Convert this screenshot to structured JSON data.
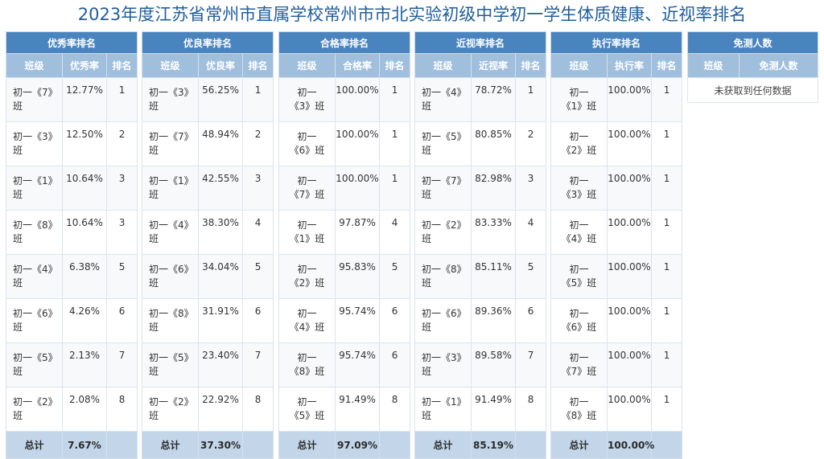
{
  "title": "2023年度江苏省常州市直属学校常州市市北实验初级中学初一学生体质健康、近视率排名",
  "col_class": "班级",
  "col_rank": "排名",
  "total_label": "总计",
  "tables": [
    {
      "heading": "优秀率排名",
      "value_col": "优秀率",
      "rows": [
        {
          "cls_a": "初一《7》",
          "cls_b": "班",
          "val": "12.77%",
          "rank": "1"
        },
        {
          "cls_a": "初一《3》",
          "cls_b": "班",
          "val": "12.50%",
          "rank": "2"
        },
        {
          "cls_a": "初一《1》",
          "cls_b": "班",
          "val": "10.64%",
          "rank": "3"
        },
        {
          "cls_a": "初一《8》",
          "cls_b": "班",
          "val": "10.64%",
          "rank": "3"
        },
        {
          "cls_a": "初一《4》",
          "cls_b": "班",
          "val": "6.38%",
          "rank": "5"
        },
        {
          "cls_a": "初一《6》",
          "cls_b": "班",
          "val": "4.26%",
          "rank": "6"
        },
        {
          "cls_a": "初一《5》",
          "cls_b": "班",
          "val": "2.13%",
          "rank": "7"
        },
        {
          "cls_a": "初一《2》",
          "cls_b": "班",
          "val": "2.08%",
          "rank": "8"
        }
      ],
      "total": "7.67%"
    },
    {
      "heading": "优良率排名",
      "value_col": "优良率",
      "rows": [
        {
          "cls_a": "初一《3》",
          "cls_b": "班",
          "val": "56.25%",
          "rank": "1"
        },
        {
          "cls_a": "初一《7》",
          "cls_b": "班",
          "val": "48.94%",
          "rank": "2"
        },
        {
          "cls_a": "初一《1》",
          "cls_b": "班",
          "val": "42.55%",
          "rank": "3"
        },
        {
          "cls_a": "初一《4》",
          "cls_b": "班",
          "val": "38.30%",
          "rank": "4"
        },
        {
          "cls_a": "初一《6》",
          "cls_b": "班",
          "val": "34.04%",
          "rank": "5"
        },
        {
          "cls_a": "初一《8》",
          "cls_b": "班",
          "val": "31.91%",
          "rank": "6"
        },
        {
          "cls_a": "初一《5》",
          "cls_b": "班",
          "val": "23.40%",
          "rank": "7"
        },
        {
          "cls_a": "初一《2》",
          "cls_b": "班",
          "val": "22.92%",
          "rank": "8"
        }
      ],
      "total": "37.30%"
    },
    {
      "heading": "合格率排名",
      "value_col": "合格率",
      "rows": [
        {
          "cls_a": "初一",
          "cls_b": "《3》班",
          "val": "100.00%",
          "rank": "1"
        },
        {
          "cls_a": "初一",
          "cls_b": "《6》班",
          "val": "100.00%",
          "rank": "1"
        },
        {
          "cls_a": "初一",
          "cls_b": "《7》班",
          "val": "100.00%",
          "rank": "1"
        },
        {
          "cls_a": "初一",
          "cls_b": "《1》班",
          "val": "97.87%",
          "rank": "4"
        },
        {
          "cls_a": "初一",
          "cls_b": "《2》班",
          "val": "95.83%",
          "rank": "5"
        },
        {
          "cls_a": "初一",
          "cls_b": "《4》班",
          "val": "95.74%",
          "rank": "6"
        },
        {
          "cls_a": "初一",
          "cls_b": "《8》班",
          "val": "95.74%",
          "rank": "6"
        },
        {
          "cls_a": "初一",
          "cls_b": "《5》班",
          "val": "91.49%",
          "rank": "8"
        }
      ],
      "total": "97.09%"
    },
    {
      "heading": "近视率排名",
      "value_col": "近视率",
      "rows": [
        {
          "cls_a": "初一《4》",
          "cls_b": "班",
          "val": "78.72%",
          "rank": "1"
        },
        {
          "cls_a": "初一《5》",
          "cls_b": "班",
          "val": "80.85%",
          "rank": "2"
        },
        {
          "cls_a": "初一《7》",
          "cls_b": "班",
          "val": "82.98%",
          "rank": "3"
        },
        {
          "cls_a": "初一《2》",
          "cls_b": "班",
          "val": "83.33%",
          "rank": "4"
        },
        {
          "cls_a": "初一《8》",
          "cls_b": "班",
          "val": "85.11%",
          "rank": "5"
        },
        {
          "cls_a": "初一《6》",
          "cls_b": "班",
          "val": "89.36%",
          "rank": "6"
        },
        {
          "cls_a": "初一《3》",
          "cls_b": "班",
          "val": "89.58%",
          "rank": "7"
        },
        {
          "cls_a": "初一《1》",
          "cls_b": "班",
          "val": "91.49%",
          "rank": "8"
        }
      ],
      "total": "85.19%"
    },
    {
      "heading": "执行率排名",
      "value_col": "执行率",
      "rows": [
        {
          "cls_a": "初一",
          "cls_b": "《1》班",
          "val": "100.00%",
          "rank": "1"
        },
        {
          "cls_a": "初一",
          "cls_b": "《2》班",
          "val": "100.00%",
          "rank": "1"
        },
        {
          "cls_a": "初一",
          "cls_b": "《3》班",
          "val": "100.00%",
          "rank": "1"
        },
        {
          "cls_a": "初一",
          "cls_b": "《4》班",
          "val": "100.00%",
          "rank": "1"
        },
        {
          "cls_a": "初一",
          "cls_b": "《5》班",
          "val": "100.00%",
          "rank": "1"
        },
        {
          "cls_a": "初一",
          "cls_b": "《6》班",
          "val": "100.00%",
          "rank": "1"
        },
        {
          "cls_a": "初一",
          "cls_b": "《7》班",
          "val": "100.00%",
          "rank": "1"
        },
        {
          "cls_a": "初一",
          "cls_b": "《8》班",
          "val": "100.00%",
          "rank": "1"
        }
      ],
      "total": "100.00%"
    }
  ],
  "exempt": {
    "heading": "免测人数",
    "col_class": "班级",
    "col_count": "免测人数",
    "empty_message": "未获取到任何数据"
  }
}
